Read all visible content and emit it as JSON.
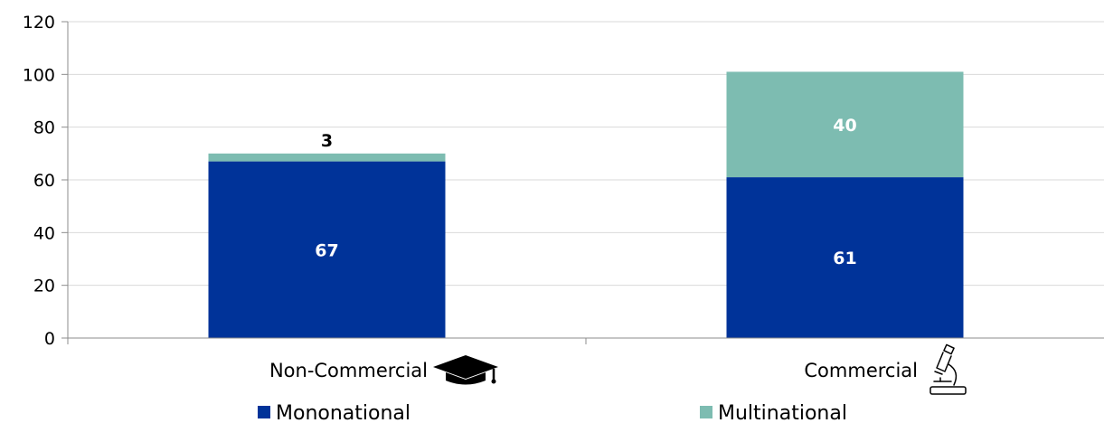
{
  "chart_data": {
    "type": "bar",
    "stacked": true,
    "categories": [
      "Non-Commercial",
      "Commercial"
    ],
    "category_icons": [
      "graduation-cap-icon",
      "microscope-icon"
    ],
    "series": [
      {
        "name": "Mononational",
        "values": [
          67,
          61
        ],
        "color": "#003399"
      },
      {
        "name": "Multinational",
        "values": [
          3,
          40
        ],
        "color": "#7dbcb1"
      }
    ],
    "title": "",
    "xlabel": "",
    "ylabel": "",
    "ylim": [
      0,
      120
    ],
    "yticks": [
      "0",
      "20",
      "40",
      "60",
      "80",
      "100",
      "120"
    ],
    "grid": true,
    "legend_position": "bottom",
    "label_colors": {
      "inside": "#ffffff",
      "above": "#000000"
    }
  }
}
